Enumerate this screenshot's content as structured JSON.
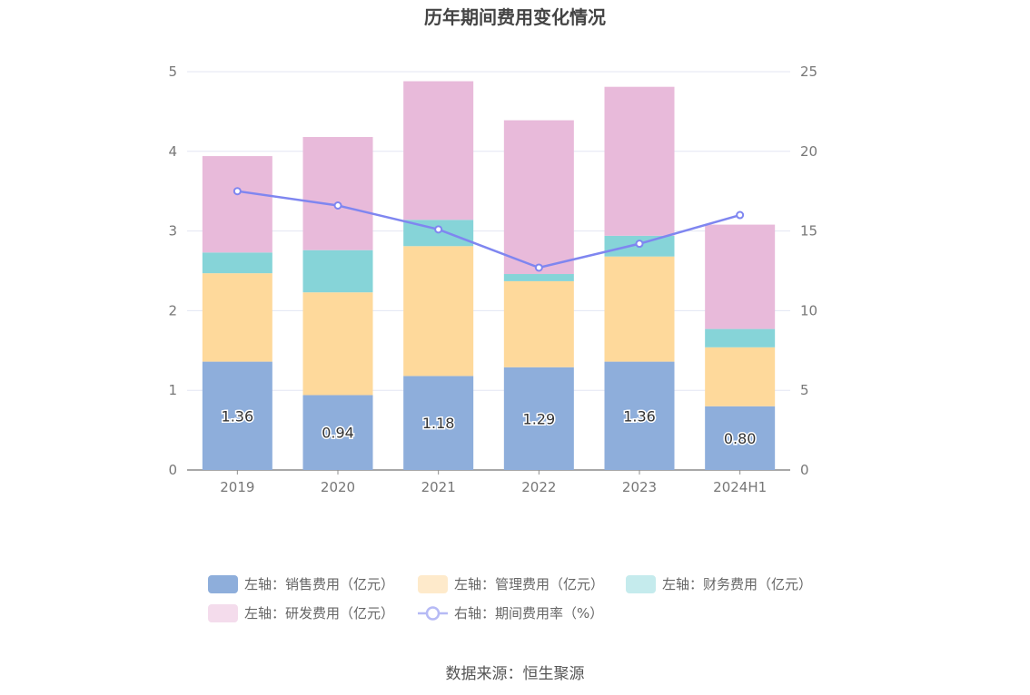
{
  "chart_data": {
    "type": "bar",
    "title": "历年期间费用变化情况",
    "categories": [
      "2019",
      "2020",
      "2021",
      "2022",
      "2023",
      "2024H1"
    ],
    "stacked": true,
    "y_left": {
      "ylim": [
        0,
        5
      ],
      "ticks": [
        0,
        1,
        2,
        3,
        4,
        5
      ]
    },
    "y_right": {
      "ylim": [
        0,
        25
      ],
      "ticks": [
        0,
        5,
        10,
        15,
        20,
        25
      ]
    },
    "grid": true,
    "legend_position": "bottom",
    "series": [
      {
        "name": "左轴：销售费用（亿元）",
        "axis": "left",
        "type": "bar",
        "color": "#8eaedb",
        "legend_color": "#8eaedb",
        "values": [
          1.36,
          0.94,
          1.18,
          1.29,
          1.36,
          0.8
        ],
        "labels": [
          "1.36",
          "0.94",
          "1.18",
          "1.29",
          "1.36",
          "0.80"
        ]
      },
      {
        "name": "左轴：管理费用（亿元）",
        "axis": "left",
        "type": "bar",
        "color": "#fed99b",
        "legend_color": "#feeacb",
        "values": [
          1.11,
          1.29,
          1.63,
          1.08,
          1.32,
          0.74
        ]
      },
      {
        "name": "左轴：财务费用（亿元）",
        "axis": "left",
        "type": "bar",
        "color": "#86d4d8",
        "legend_color": "#c5ebed",
        "values": [
          0.26,
          0.53,
          0.33,
          0.09,
          0.26,
          0.23
        ]
      },
      {
        "name": "左轴：研发费用（亿元）",
        "axis": "left",
        "type": "bar",
        "color": "#e8bada",
        "legend_color": "#f4dcec",
        "values": [
          1.21,
          1.42,
          1.74,
          1.93,
          1.87,
          1.31
        ]
      },
      {
        "name": "右轴：期间费用率（%）",
        "axis": "right",
        "type": "line",
        "color": "#7f86f0",
        "legend_color": "#b6baf5",
        "values": [
          17.5,
          16.6,
          15.1,
          12.7,
          14.2,
          16.0
        ]
      }
    ],
    "source": "数据来源：恒生聚源"
  }
}
